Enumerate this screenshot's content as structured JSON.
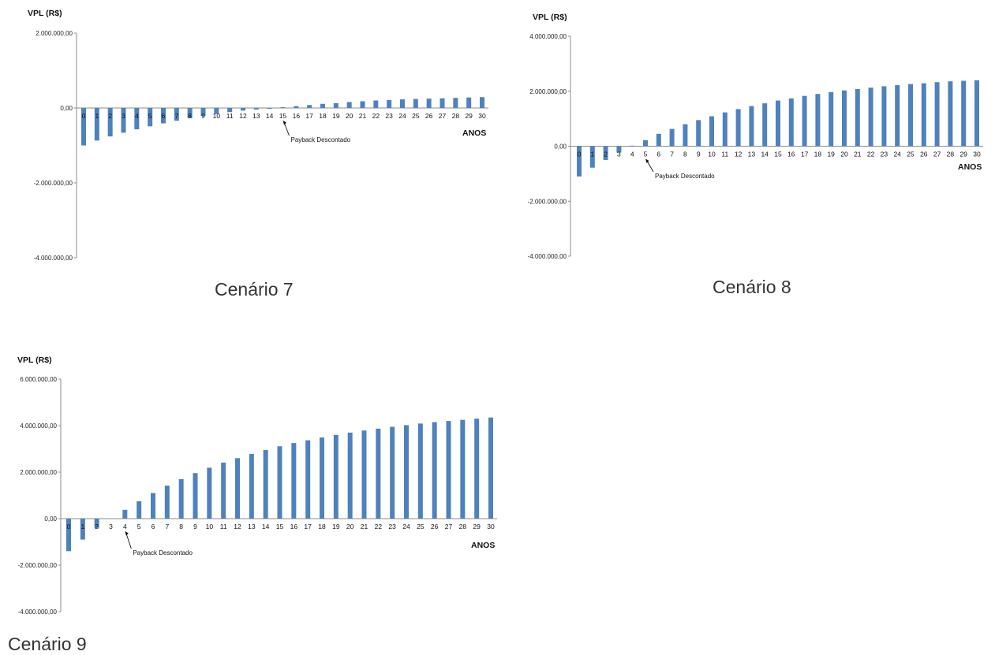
{
  "captions": [
    "Cenário 7",
    "Cenário 8",
    "Cenário 9"
  ],
  "colors": {
    "bar": "#4f81bd",
    "axis": "#8c8c8c"
  },
  "chart_data": [
    {
      "type": "bar",
      "title": "",
      "ylabel": "VPL (R$)",
      "xlabel": "ANOS",
      "ylim": [
        -4000000,
        2000000
      ],
      "yticks": [
        2000000,
        0,
        -2000000,
        -4000000
      ],
      "ytick_labels": [
        "2.000.000,00",
        "0,00",
        "-2.000.000,00",
        "-4.000.000,00"
      ],
      "categories": [
        "0",
        "1",
        "2",
        "3",
        "4",
        "5",
        "6",
        "7",
        "8",
        "9",
        "10",
        "11",
        "12",
        "13",
        "14",
        "15",
        "16",
        "17",
        "18",
        "19",
        "20",
        "21",
        "22",
        "23",
        "24",
        "25",
        "26",
        "27",
        "28",
        "29",
        "30"
      ],
      "values": [
        -1000000,
        -870000,
        -760000,
        -660000,
        -570000,
        -490000,
        -410000,
        -340000,
        -270000,
        -210000,
        -160000,
        -110000,
        -70000,
        -40000,
        -10000,
        20000,
        50000,
        80000,
        110000,
        130000,
        160000,
        180000,
        200000,
        210000,
        230000,
        240000,
        250000,
        260000,
        270000,
        280000,
        290000
      ],
      "annotation": {
        "text": "Payback Descontado",
        "category": "15"
      },
      "grid": false,
      "legend": "none"
    },
    {
      "type": "bar",
      "title": "",
      "ylabel": "VPL (R$)",
      "xlabel": "ANOS",
      "ylim": [
        -4000000,
        4000000
      ],
      "yticks": [
        4000000,
        2000000,
        0,
        -2000000,
        -4000000
      ],
      "ytick_labels": [
        "4.000.000,00",
        "2.000.000,00",
        "0,00",
        "-2.000.000,00",
        "-4.000.000,00"
      ],
      "categories": [
        "0",
        "1",
        "2",
        "3",
        "4",
        "5",
        "6",
        "7",
        "8",
        "9",
        "10",
        "11",
        "12",
        "13",
        "14",
        "15",
        "16",
        "17",
        "18",
        "19",
        "20",
        "21",
        "22",
        "23",
        "24",
        "25",
        "26",
        "27",
        "28",
        "29",
        "30"
      ],
      "values": [
        -1100000,
        -780000,
        -500000,
        -230000,
        20000,
        220000,
        450000,
        630000,
        800000,
        950000,
        1090000,
        1230000,
        1350000,
        1460000,
        1560000,
        1660000,
        1740000,
        1830000,
        1900000,
        1970000,
        2030000,
        2080000,
        2130000,
        2180000,
        2220000,
        2260000,
        2290000,
        2330000,
        2360000,
        2380000,
        2400000
      ],
      "annotation": {
        "text": "Payback Descontado",
        "category": "5"
      },
      "grid": false,
      "legend": "none"
    },
    {
      "type": "bar",
      "title": "",
      "ylabel": "VPL (R$)",
      "xlabel": "ANOS",
      "ylim": [
        -4000000,
        6000000
      ],
      "yticks": [
        6000000,
        4000000,
        2000000,
        0,
        -2000000,
        -4000000
      ],
      "ytick_labels": [
        "6.000.000,00",
        "4.000.000,00",
        "2.000.000,00",
        "0,00",
        "-2.000.000,00",
        "-4.000.000,00"
      ],
      "categories": [
        "0",
        "1",
        "2",
        "3",
        "4",
        "5",
        "6",
        "7",
        "8",
        "9",
        "10",
        "11",
        "12",
        "13",
        "14",
        "15",
        "16",
        "17",
        "18",
        "19",
        "20",
        "21",
        "22",
        "23",
        "24",
        "25",
        "26",
        "27",
        "28",
        "29",
        "30"
      ],
      "values": [
        -1400000,
        -900000,
        -400000,
        0,
        380000,
        750000,
        1100000,
        1420000,
        1700000,
        1960000,
        2190000,
        2410000,
        2600000,
        2780000,
        2950000,
        3110000,
        3250000,
        3370000,
        3490000,
        3600000,
        3700000,
        3790000,
        3870000,
        3950000,
        4020000,
        4090000,
        4150000,
        4200000,
        4250000,
        4300000,
        4350000
      ],
      "annotation": {
        "text": "Payback Descontado",
        "category": "4"
      },
      "grid": false,
      "legend": "none"
    }
  ]
}
